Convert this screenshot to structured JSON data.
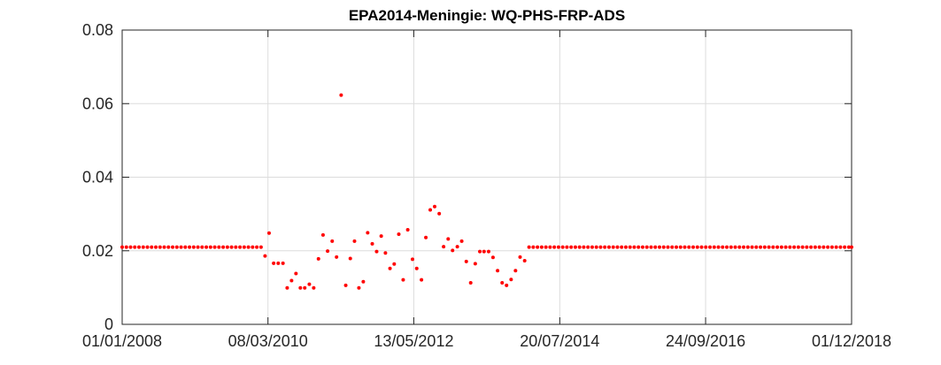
{
  "chart_data": {
    "type": "scatter",
    "title": "EPA2014-Meningie: WQ-PHS-FRP-ADS",
    "xlabel": "",
    "ylabel": "",
    "xlim": [
      "2008-01-01",
      "2018-12-01"
    ],
    "ylim": [
      0,
      0.08
    ],
    "x_tick_labels": [
      "01/01/2008",
      "08/03/2010",
      "13/05/2012",
      "20/07/2014",
      "24/09/2016",
      "01/12/2018"
    ],
    "y_tick_labels": [
      "0",
      "0.02",
      "0.04",
      "0.06",
      "0.08"
    ],
    "x_ticks": [
      "2008-01-01",
      "2010-03-08",
      "2012-05-13",
      "2014-07-20",
      "2016-09-24",
      "2018-12-01"
    ],
    "y_ticks": [
      0,
      0.02,
      0.04,
      0.06,
      0.08
    ],
    "grid": true,
    "marker_color": "#ff0000",
    "series": [
      {
        "points": [
          [
            "2008-01-01",
            0.021
          ],
          [
            "2008-01-24",
            0.021
          ],
          [
            "2008-02-16",
            0.021
          ],
          [
            "2008-03-10",
            0.021
          ],
          [
            "2008-04-02",
            0.021
          ],
          [
            "2008-04-25",
            0.021
          ],
          [
            "2008-05-18",
            0.021
          ],
          [
            "2008-06-10",
            0.021
          ],
          [
            "2008-07-03",
            0.021
          ],
          [
            "2008-07-26",
            0.021
          ],
          [
            "2008-08-18",
            0.021
          ],
          [
            "2008-09-10",
            0.021
          ],
          [
            "2008-10-03",
            0.021
          ],
          [
            "2008-10-26",
            0.021
          ],
          [
            "2008-11-18",
            0.021
          ],
          [
            "2008-12-11",
            0.021
          ],
          [
            "2009-01-03",
            0.021
          ],
          [
            "2009-01-26",
            0.021
          ],
          [
            "2009-02-18",
            0.021
          ],
          [
            "2009-03-13",
            0.021
          ],
          [
            "2009-04-05",
            0.021
          ],
          [
            "2009-04-28",
            0.021
          ],
          [
            "2009-05-21",
            0.021
          ],
          [
            "2009-06-13",
            0.021
          ],
          [
            "2009-07-06",
            0.021
          ],
          [
            "2009-07-29",
            0.021
          ],
          [
            "2009-08-21",
            0.021
          ],
          [
            "2009-09-13",
            0.021
          ],
          [
            "2009-10-06",
            0.021
          ],
          [
            "2009-10-29",
            0.021
          ],
          [
            "2009-11-21",
            0.021
          ],
          [
            "2009-12-14",
            0.021
          ],
          [
            "2010-01-06",
            0.021
          ],
          [
            "2010-01-29",
            0.021
          ],
          [
            "2010-02-20",
            0.0186
          ],
          [
            "2010-03-14",
            0.0248
          ],
          [
            "2010-04-08",
            0.0166
          ],
          [
            "2010-05-03",
            0.0166
          ],
          [
            "2010-05-29",
            0.0166
          ],
          [
            "2010-06-21",
            0.0099
          ],
          [
            "2010-07-15",
            0.0119
          ],
          [
            "2010-08-08",
            0.0138
          ],
          [
            "2010-09-01",
            0.0099
          ],
          [
            "2010-09-25",
            0.0099
          ],
          [
            "2010-10-20",
            0.0109
          ],
          [
            "2010-11-13",
            0.0099
          ],
          [
            "2010-12-09",
            0.0178
          ],
          [
            "2011-01-03",
            0.0243
          ],
          [
            "2011-01-28",
            0.0199
          ],
          [
            "2011-02-22",
            0.0226
          ],
          [
            "2011-03-18",
            0.0183
          ],
          [
            "2011-04-12",
            0.0623
          ],
          [
            "2011-05-07",
            0.0106
          ],
          [
            "2011-06-01",
            0.0179
          ],
          [
            "2011-06-24",
            0.0226
          ],
          [
            "2011-07-18",
            0.0099
          ],
          [
            "2011-08-11",
            0.0116
          ],
          [
            "2011-09-04",
            0.0249
          ],
          [
            "2011-09-29",
            0.0219
          ],
          [
            "2011-10-23",
            0.0198
          ],
          [
            "2011-11-17",
            0.024
          ],
          [
            "2011-12-10",
            0.0194
          ],
          [
            "2012-01-04",
            0.0152
          ],
          [
            "2012-01-27",
            0.0164
          ],
          [
            "2012-02-21",
            0.0245
          ],
          [
            "2012-03-16",
            0.0121
          ],
          [
            "2012-04-10",
            0.0257
          ],
          [
            "2012-05-06",
            0.0177
          ],
          [
            "2012-05-29",
            0.0152
          ],
          [
            "2012-06-24",
            0.0121
          ],
          [
            "2012-07-18",
            0.0236
          ],
          [
            "2012-08-11",
            0.0311
          ],
          [
            "2012-09-04",
            0.032
          ],
          [
            "2012-09-29",
            0.0301
          ],
          [
            "2012-10-23",
            0.0211
          ],
          [
            "2012-11-17",
            0.0232
          ],
          [
            "2012-12-11",
            0.0201
          ],
          [
            "2013-01-06",
            0.0211
          ],
          [
            "2013-01-30",
            0.0226
          ],
          [
            "2013-02-24",
            0.0171
          ],
          [
            "2013-03-20",
            0.0113
          ],
          [
            "2013-04-14",
            0.0165
          ],
          [
            "2013-05-09",
            0.0198
          ],
          [
            "2013-06-01",
            0.0198
          ],
          [
            "2013-06-26",
            0.0198
          ],
          [
            "2013-07-20",
            0.0182
          ],
          [
            "2013-08-14",
            0.0146
          ],
          [
            "2013-09-08",
            0.0113
          ],
          [
            "2013-10-02",
            0.0106
          ],
          [
            "2013-10-27",
            0.0122
          ],
          [
            "2013-11-20",
            0.0146
          ],
          [
            "2013-12-15",
            0.0183
          ],
          [
            "2014-01-09",
            0.0173
          ],
          [
            "2014-02-02",
            0.021
          ],
          [
            "2014-02-25",
            0.021
          ],
          [
            "2014-03-20",
            0.021
          ],
          [
            "2014-04-12",
            0.021
          ],
          [
            "2014-05-05",
            0.021
          ],
          [
            "2014-05-28",
            0.021
          ],
          [
            "2014-06-20",
            0.021
          ],
          [
            "2014-07-13",
            0.021
          ],
          [
            "2014-08-05",
            0.021
          ],
          [
            "2014-08-28",
            0.021
          ],
          [
            "2014-09-20",
            0.021
          ],
          [
            "2014-10-13",
            0.021
          ],
          [
            "2014-11-05",
            0.021
          ],
          [
            "2014-11-28",
            0.021
          ],
          [
            "2014-12-21",
            0.021
          ],
          [
            "2015-01-13",
            0.021
          ],
          [
            "2015-02-05",
            0.021
          ],
          [
            "2015-02-28",
            0.021
          ],
          [
            "2015-03-23",
            0.021
          ],
          [
            "2015-04-15",
            0.021
          ],
          [
            "2015-05-08",
            0.021
          ],
          [
            "2015-05-31",
            0.021
          ],
          [
            "2015-06-23",
            0.021
          ],
          [
            "2015-07-16",
            0.021
          ],
          [
            "2015-08-08",
            0.021
          ],
          [
            "2015-08-31",
            0.021
          ],
          [
            "2015-09-23",
            0.021
          ],
          [
            "2015-10-16",
            0.021
          ],
          [
            "2015-11-08",
            0.021
          ],
          [
            "2015-12-01",
            0.021
          ],
          [
            "2015-12-24",
            0.021
          ],
          [
            "2016-01-16",
            0.021
          ],
          [
            "2016-02-08",
            0.021
          ],
          [
            "2016-03-02",
            0.021
          ],
          [
            "2016-03-25",
            0.021
          ],
          [
            "2016-04-17",
            0.021
          ],
          [
            "2016-05-10",
            0.021
          ],
          [
            "2016-06-02",
            0.021
          ],
          [
            "2016-06-25",
            0.021
          ],
          [
            "2016-07-18",
            0.021
          ],
          [
            "2016-08-10",
            0.021
          ],
          [
            "2016-09-02",
            0.021
          ],
          [
            "2016-09-25",
            0.021
          ],
          [
            "2016-10-18",
            0.021
          ],
          [
            "2016-11-10",
            0.021
          ],
          [
            "2016-12-03",
            0.021
          ],
          [
            "2016-12-26",
            0.021
          ],
          [
            "2017-01-18",
            0.021
          ],
          [
            "2017-02-10",
            0.021
          ],
          [
            "2017-03-05",
            0.021
          ],
          [
            "2017-03-28",
            0.021
          ],
          [
            "2017-04-20",
            0.021
          ],
          [
            "2017-05-13",
            0.021
          ],
          [
            "2017-06-05",
            0.021
          ],
          [
            "2017-06-28",
            0.021
          ],
          [
            "2017-07-21",
            0.021
          ],
          [
            "2017-08-13",
            0.021
          ],
          [
            "2017-09-05",
            0.021
          ],
          [
            "2017-09-28",
            0.021
          ],
          [
            "2017-10-21",
            0.021
          ],
          [
            "2017-11-13",
            0.021
          ],
          [
            "2017-12-06",
            0.021
          ],
          [
            "2017-12-29",
            0.021
          ],
          [
            "2018-01-21",
            0.021
          ],
          [
            "2018-02-13",
            0.021
          ],
          [
            "2018-03-08",
            0.021
          ],
          [
            "2018-03-31",
            0.021
          ],
          [
            "2018-04-23",
            0.021
          ],
          [
            "2018-05-16",
            0.021
          ],
          [
            "2018-06-08",
            0.021
          ],
          [
            "2018-07-01",
            0.021
          ],
          [
            "2018-07-24",
            0.021
          ],
          [
            "2018-08-16",
            0.021
          ],
          [
            "2018-09-08",
            0.021
          ],
          [
            "2018-10-01",
            0.021
          ],
          [
            "2018-10-24",
            0.021
          ],
          [
            "2018-11-16",
            0.021
          ],
          [
            "2018-12-01",
            0.021
          ]
        ]
      }
    ]
  }
}
